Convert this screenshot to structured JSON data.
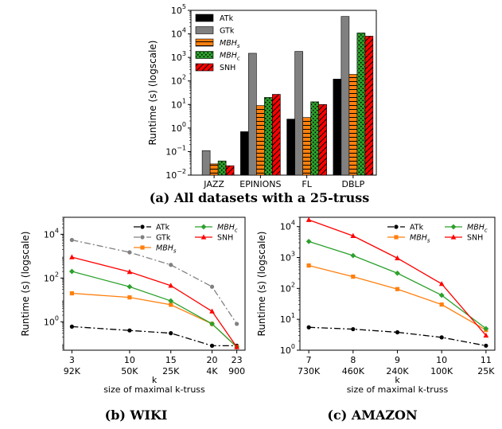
{
  "chart_data": [
    {
      "id": "a",
      "type": "bar",
      "caption": "(a) All datasets with a 25-truss",
      "xlabel": "",
      "ylabel": "Runtime (s) (logscale)",
      "yscale": "log",
      "ylim": [
        0.01,
        100000
      ],
      "yticks": [
        {
          "v": 0.01,
          "base": "10",
          "exp": "−2"
        },
        {
          "v": 0.1,
          "base": "10",
          "exp": "−1"
        },
        {
          "v": 1,
          "base": "10",
          "exp": "0"
        },
        {
          "v": 10,
          "base": "10",
          "exp": "1"
        },
        {
          "v": 100,
          "base": "10",
          "exp": "2"
        },
        {
          "v": 1000,
          "base": "10",
          "exp": "3"
        },
        {
          "v": 10000,
          "base": "10",
          "exp": "4"
        },
        {
          "v": 100000,
          "base": "10",
          "exp": "5"
        }
      ],
      "categories": [
        "JAZZ",
        "EPINIONS",
        "FL",
        "DBLP"
      ],
      "series": [
        {
          "name": "ATk",
          "sub": "",
          "italic": false,
          "color": "#000000",
          "hatch": "none",
          "values": [
            null,
            0.7,
            2.4,
            120
          ]
        },
        {
          "name": "GTk",
          "sub": "",
          "italic": false,
          "color": "#808080",
          "hatch": "none",
          "values": [
            0.11,
            1500,
            1800,
            55000
          ]
        },
        {
          "name": "MBH",
          "sub": "s",
          "italic": true,
          "color": "#ff7f0e",
          "hatch": "horizontal",
          "values": [
            0.03,
            9,
            2.8,
            190
          ]
        },
        {
          "name": "MBH",
          "sub": "c",
          "italic": true,
          "color": "#2ca02c",
          "hatch": "dots",
          "values": [
            0.04,
            20,
            13,
            11000
          ]
        },
        {
          "name": "SNH",
          "sub": "",
          "italic": false,
          "color": "#ff0000",
          "hatch": "diagonal",
          "values": [
            0.025,
            27,
            10,
            8000
          ]
        }
      ]
    },
    {
      "id": "b",
      "type": "line",
      "caption": "(b) WIKI",
      "xlabel": "k",
      "xlabel2": "size of maximal k-truss",
      "ylabel": "Runtime (s) (logscale)",
      "yscale": "log",
      "ylim": [
        0.05,
        60000
      ],
      "yticks": [
        {
          "v": 1,
          "base": "10",
          "exp": "0"
        },
        {
          "v": 100,
          "base": "10",
          "exp": "2"
        },
        {
          "v": 10000,
          "base": "10",
          "exp": "4"
        }
      ],
      "x": [
        3,
        10,
        15,
        20,
        23
      ],
      "xticks": [
        {
          "k": "3",
          "size": "92K"
        },
        {
          "k": "10",
          "size": "50K"
        },
        {
          "k": "15",
          "size": "25K"
        },
        {
          "k": "20",
          "size": "4K"
        },
        {
          "k": "23",
          "size": "900"
        }
      ],
      "series": [
        {
          "name": "ATk",
          "sub": "",
          "italic": false,
          "color": "#000000",
          "dash": "8,3,2,3",
          "marker": "circle",
          "values": [
            0.6,
            0.4,
            0.3,
            0.08,
            0.08
          ]
        },
        {
          "name": "GTk",
          "sub": "",
          "italic": false,
          "color": "#808080",
          "dash": "8,3,2,3",
          "marker": "circle",
          "values": [
            5500,
            1500,
            400,
            40,
            0.8
          ]
        },
        {
          "name": "MBH",
          "sub": "s",
          "italic": true,
          "color": "#ff7f0e",
          "dash": "",
          "marker": "square",
          "values": [
            20,
            13,
            6,
            0.8,
            0.07
          ]
        },
        {
          "name": "MBH",
          "sub": "c",
          "italic": true,
          "color": "#2ca02c",
          "dash": "",
          "marker": "diamond",
          "values": [
            200,
            40,
            9,
            0.8,
            0.07
          ]
        },
        {
          "name": "SNH",
          "sub": "",
          "italic": false,
          "color": "#ff0000",
          "dash": "",
          "marker": "triangle",
          "values": [
            900,
            190,
            45,
            3,
            0.07
          ]
        }
      ]
    },
    {
      "id": "c",
      "type": "line",
      "caption": "(c) AMAZON",
      "xlabel": "k",
      "xlabel2": "size of maximal k-truss",
      "ylabel": "Runtime (s) (logscale)",
      "yscale": "log",
      "ylim": [
        1,
        20000
      ],
      "yticks": [
        {
          "v": 1,
          "base": "10",
          "exp": "0"
        },
        {
          "v": 10,
          "base": "10",
          "exp": "1"
        },
        {
          "v": 100,
          "base": "10",
          "exp": "2"
        },
        {
          "v": 1000,
          "base": "10",
          "exp": "3"
        },
        {
          "v": 10000,
          "base": "10",
          "exp": "4"
        }
      ],
      "x": [
        7,
        8,
        9,
        10,
        11
      ],
      "xticks": [
        {
          "k": "7",
          "size": "730K"
        },
        {
          "k": "8",
          "size": "460K"
        },
        {
          "k": "9",
          "size": "240K"
        },
        {
          "k": "10",
          "size": "100K"
        },
        {
          "k": "11",
          "size": "25K"
        }
      ],
      "series": [
        {
          "name": "ATk",
          "sub": "",
          "italic": false,
          "color": "#000000",
          "dash": "8,3,2,3",
          "marker": "circle",
          "values": [
            5.5,
            4.8,
            3.8,
            2.6,
            1.4
          ]
        },
        {
          "name": "MBH",
          "sub": "s",
          "italic": true,
          "color": "#ff7f0e",
          "dash": "",
          "marker": "square",
          "values": [
            550,
            240,
            95,
            30,
            4.5
          ]
        },
        {
          "name": "MBH",
          "sub": "c",
          "italic": true,
          "color": "#2ca02c",
          "dash": "",
          "marker": "diamond",
          "values": [
            3300,
            1150,
            310,
            60,
            5
          ]
        },
        {
          "name": "SNH",
          "sub": "",
          "italic": false,
          "color": "#ff0000",
          "dash": "",
          "marker": "triangle",
          "values": [
            16500,
            5000,
            950,
            140,
            3
          ]
        }
      ]
    }
  ]
}
